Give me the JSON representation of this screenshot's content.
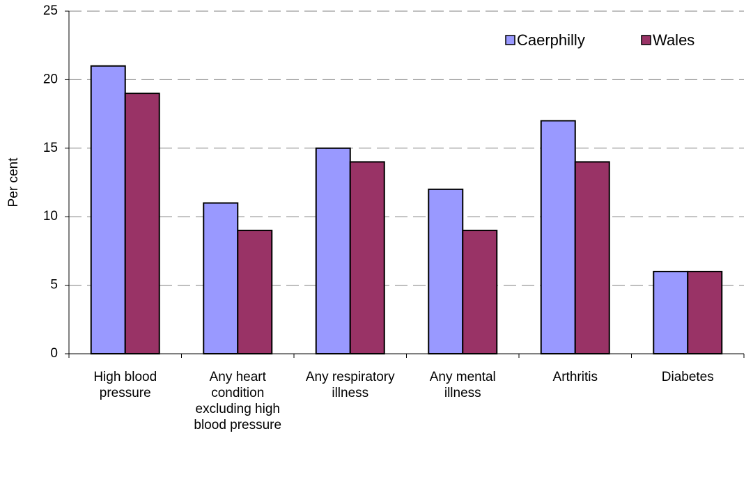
{
  "chart_data": {
    "type": "bar",
    "y_label": "Per cent",
    "categories": [
      "High blood pressure",
      "Any heart condition excluding high blood pressure",
      "Any respiratory illness",
      "Any mental illness",
      "Arthritis",
      "Diabetes"
    ],
    "series": [
      {
        "name": "Caerphilly",
        "color": "#9999ff",
        "values": [
          21,
          11,
          15,
          12,
          17,
          6
        ]
      },
      {
        "name": "Wales",
        "color": "#993366",
        "values": [
          19,
          9,
          14,
          9,
          14,
          6
        ]
      }
    ],
    "ylim": [
      0,
      25
    ],
    "yticks": [
      0,
      5,
      10,
      15,
      20,
      25
    ],
    "grid": true,
    "legend": "top-right"
  }
}
